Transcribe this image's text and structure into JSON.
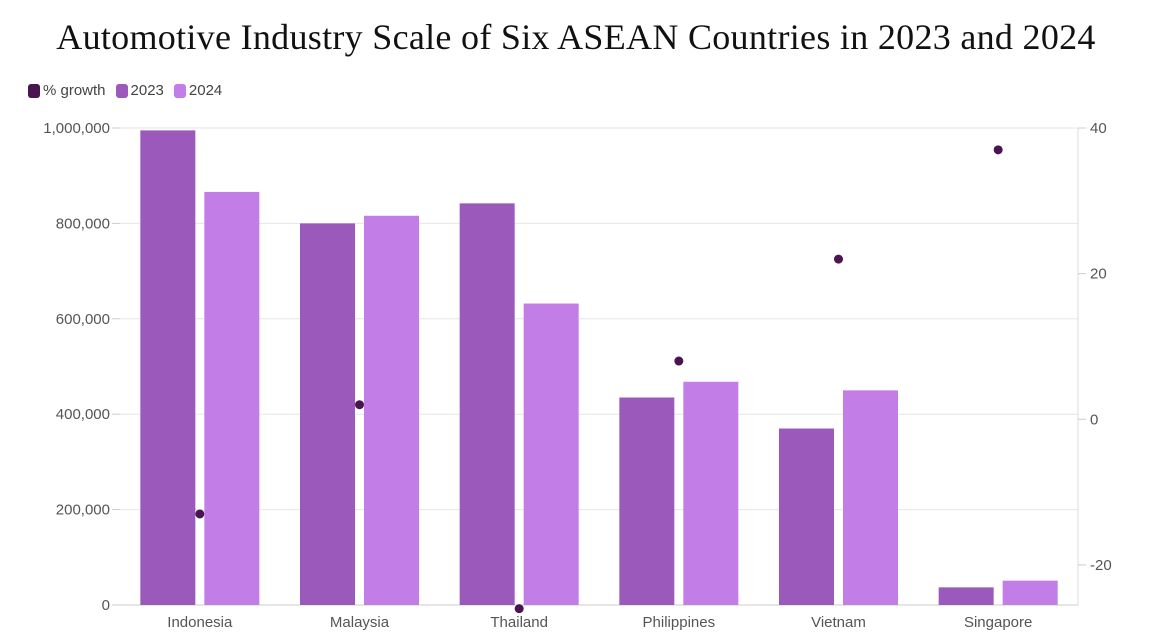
{
  "chart_data": {
    "type": "bar",
    "title": "Automotive Industry Scale of Six ASEAN Countries in 2023 and 2024",
    "categories": [
      "Indonesia",
      "Malaysia",
      "Thailand",
      "Philippines",
      "Vietnam",
      "Singapore"
    ],
    "series": [
      {
        "name": "2023",
        "values": [
          995000,
          800000,
          842000,
          435000,
          370000,
          37000
        ],
        "color": "#9b59bc",
        "axis": "left",
        "kind": "bar"
      },
      {
        "name": "2024",
        "values": [
          866000,
          816000,
          632000,
          468000,
          450000,
          51000
        ],
        "color": "#c27de6",
        "axis": "left",
        "kind": "bar"
      },
      {
        "name": "% growth",
        "values": [
          -13,
          2,
          -26,
          8,
          22,
          37
        ],
        "color": "#4a1450",
        "axis": "right",
        "kind": "scatter"
      }
    ],
    "ylim_left": [
      0,
      1000000
    ],
    "ylim_right": [
      -25.5,
      40
    ],
    "yticks_left": [
      "0",
      "200,000",
      "400,000",
      "600,000",
      "800,000",
      "1,000,000"
    ],
    "yticks_right": [
      "-20",
      "0",
      "20",
      "40"
    ],
    "grid": true,
    "legend_position": "top-left"
  }
}
